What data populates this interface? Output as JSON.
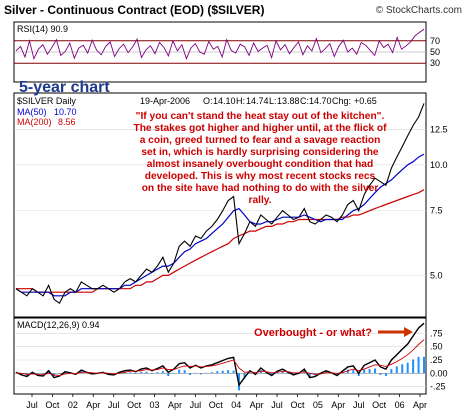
{
  "header": {
    "title": "Silver - Continuous Contract (EOD) ($SILVER)",
    "watermark": "© StockCharts.com"
  },
  "chart_data": [
    {
      "type": "line",
      "panel": "rsi",
      "indicator_label": "RSI(14) 90.9",
      "overlay_text": "5-year chart",
      "ylim": [
        0,
        100
      ],
      "reference_lines": [
        30,
        50,
        70
      ],
      "y_ticks": [
        "30",
        "50",
        "70"
      ],
      "grid": true,
      "series": [
        {
          "name": "RSI(14)",
          "color": "#800080",
          "values": [
            52,
            60,
            41,
            70,
            38,
            55,
            63,
            46,
            58,
            72,
            44,
            51,
            66,
            39,
            57,
            62,
            48,
            71,
            53,
            45,
            60,
            68,
            42,
            56,
            64,
            49,
            59,
            73,
            40,
            54,
            61,
            47,
            67,
            58,
            43,
            70,
            52,
            63,
            38,
            57,
            65,
            50,
            46,
            69,
            55,
            60,
            41,
            72,
            53,
            48,
            64,
            59,
            44,
            66,
            51,
            57,
            62,
            40,
            70,
            54,
            63,
            47,
            58,
            68,
            45,
            61,
            52,
            74,
            49,
            56,
            65,
            42,
            60,
            71,
            50,
            57,
            46,
            67,
            62,
            53,
            44,
            70,
            58,
            64,
            49,
            76,
            55,
            61,
            68,
            79,
            85,
            90.9
          ]
        }
      ]
    },
    {
      "type": "line",
      "panel": "price",
      "indicator_label": "$SILVER Daily",
      "date_stamp": "19-Apr-2006",
      "ohlc": {
        "O": "14.10",
        "H": "14.74",
        "L": "13.88",
        "C": "14.70",
        "Chg": "+0.65"
      },
      "ma_labels": [
        {
          "name": "MA(50)",
          "value": "10.70",
          "color": "#0000cc"
        },
        {
          "name": "MA(200)",
          "value": "8.56",
          "color": "#cc0000"
        }
      ],
      "annotation": "\"If you can't stand the heat stay out of the kitchen\". The stakes got higher and higher until, at the flick of a coin, greed turned to fear and a savage reaction set in, which is hardly surprising considering the almost insanely overbought condition that had developed. This is why most recent stocks recs on the site have had nothing to do with the silver rally.",
      "annotation_lines": [
        "\"If you can't stand the heat stay out of the kitchen\".",
        "The stakes got higher and higher until, at the flick of",
        "a coin, greed turned to fear and a savage reaction",
        "set in, which is hardly surprising considering the",
        "almost insanely overbought condition that had",
        "developed. This is why most recent stocks recs",
        "on the site have had nothing to do with the silver",
        "rally."
      ],
      "y_scale": "log",
      "ylim": [
        3.9,
        15.5
      ],
      "y_ticks": [
        "5.0",
        "7.5",
        "10.0",
        "12.5"
      ],
      "y_tick_values": [
        5.0,
        7.5,
        10.0,
        12.5
      ],
      "grid": true,
      "series": [
        {
          "name": "$SILVER Daily",
          "color": "#000000",
          "values": [
            4.6,
            4.5,
            4.4,
            4.6,
            4.5,
            4.4,
            4.7,
            4.3,
            4.2,
            4.5,
            4.6,
            4.5,
            4.8,
            4.7,
            4.6,
            4.6,
            4.7,
            4.6,
            4.5,
            4.6,
            4.8,
            4.9,
            4.8,
            5.0,
            5.2,
            5.1,
            5.3,
            5.6,
            5.1,
            5.4,
            6.0,
            6.2,
            6.0,
            6.4,
            6.3,
            6.6,
            6.8,
            7.1,
            7.5,
            8.0,
            8.2,
            6.1,
            6.5,
            7.0,
            6.8,
            7.3,
            7.1,
            6.9,
            7.2,
            7.5,
            7.3,
            7.1,
            7.2,
            7.6,
            7.0,
            6.9,
            7.1,
            7.3,
            7.2,
            7.0,
            7.3,
            7.8,
            8.0,
            7.5,
            8.3,
            8.8,
            9.2,
            9.0,
            8.8,
            9.8,
            10.5,
            11.2,
            12.0,
            12.8,
            13.5,
            14.7
          ]
        },
        {
          "name": "MA(50)",
          "color": "#0000cc",
          "values": [
            4.6,
            4.5,
            4.5,
            4.5,
            4.5,
            4.5,
            4.5,
            4.4,
            4.4,
            4.4,
            4.5,
            4.5,
            4.6,
            4.6,
            4.6,
            4.6,
            4.6,
            4.6,
            4.6,
            4.6,
            4.7,
            4.7,
            4.8,
            4.9,
            5.0,
            5.1,
            5.2,
            5.3,
            5.3,
            5.4,
            5.6,
            5.8,
            5.9,
            6.1,
            6.2,
            6.3,
            6.5,
            6.7,
            6.9,
            7.2,
            7.5,
            7.6,
            7.3,
            7.0,
            6.9,
            6.9,
            7.0,
            7.0,
            7.1,
            7.2,
            7.2,
            7.2,
            7.2,
            7.3,
            7.2,
            7.1,
            7.0,
            7.1,
            7.1,
            7.1,
            7.1,
            7.3,
            7.5,
            7.6,
            7.8,
            8.1,
            8.4,
            8.7,
            8.9,
            9.1,
            9.4,
            9.7,
            10.0,
            10.2,
            10.5,
            10.7
          ]
        },
        {
          "name": "MA(200)",
          "color": "#cc0000",
          "values": [
            4.6,
            4.6,
            4.6,
            4.6,
            4.5,
            4.5,
            4.5,
            4.5,
            4.5,
            4.5,
            4.5,
            4.5,
            4.5,
            4.5,
            4.5,
            4.6,
            4.6,
            4.6,
            4.6,
            4.6,
            4.6,
            4.6,
            4.7,
            4.7,
            4.8,
            4.8,
            4.9,
            5.0,
            5.0,
            5.1,
            5.2,
            5.3,
            5.4,
            5.5,
            5.6,
            5.7,
            5.8,
            5.9,
            6.0,
            6.1,
            6.3,
            6.4,
            6.5,
            6.6,
            6.6,
            6.7,
            6.8,
            6.8,
            6.9,
            6.9,
            7.0,
            7.0,
            7.1,
            7.1,
            7.1,
            7.1,
            7.1,
            7.1,
            7.1,
            7.1,
            7.2,
            7.2,
            7.3,
            7.3,
            7.4,
            7.5,
            7.6,
            7.7,
            7.8,
            7.9,
            8.0,
            8.1,
            8.2,
            8.3,
            8.4,
            8.56
          ]
        }
      ]
    },
    {
      "type": "line",
      "panel": "macd",
      "indicator_label": "MACD(12,26,9) 0.94",
      "annotation": "Overbought - or what?",
      "ylim": [
        -0.35,
        1.0
      ],
      "y_ticks": [
        "-.25",
        "0.00",
        ".25",
        ".50",
        ".75"
      ],
      "y_tick_values": [
        -0.25,
        0.0,
        0.25,
        0.5,
        0.75
      ],
      "grid": true,
      "series": [
        {
          "name": "MACD",
          "color": "#000000",
          "values": [
            0.02,
            -0.03,
            -0.06,
            0.02,
            -0.04,
            -0.05,
            0.05,
            -0.08,
            -0.05,
            0.03,
            0.01,
            -0.02,
            0.06,
            0.02,
            -0.01,
            0.0,
            0.02,
            -0.02,
            -0.03,
            0.02,
            0.05,
            0.06,
            0.03,
            0.08,
            0.1,
            0.05,
            0.09,
            0.14,
            0.02,
            0.08,
            0.18,
            0.2,
            0.1,
            0.15,
            0.1,
            0.14,
            0.16,
            0.2,
            0.24,
            0.28,
            0.3,
            -0.22,
            -0.08,
            0.05,
            -0.02,
            0.1,
            0.02,
            -0.04,
            0.04,
            0.08,
            0.02,
            -0.03,
            0.0,
            0.08,
            -0.08,
            -0.06,
            0.0,
            0.05,
            0.01,
            -0.04,
            0.04,
            0.12,
            0.14,
            0.0,
            0.15,
            0.2,
            0.25,
            0.12,
            0.08,
            0.25,
            0.35,
            0.45,
            0.55,
            0.7,
            0.85,
            0.94
          ]
        },
        {
          "name": "Signal",
          "color": "#cc0000",
          "values": [
            0.01,
            0.0,
            -0.02,
            -0.01,
            -0.02,
            -0.03,
            0.0,
            -0.03,
            -0.04,
            -0.01,
            0.0,
            -0.01,
            0.02,
            0.02,
            0.01,
            0.0,
            0.01,
            0.0,
            -0.01,
            0.0,
            0.02,
            0.04,
            0.04,
            0.05,
            0.07,
            0.06,
            0.07,
            0.1,
            0.07,
            0.07,
            0.11,
            0.14,
            0.13,
            0.14,
            0.12,
            0.13,
            0.14,
            0.16,
            0.19,
            0.22,
            0.25,
            0.1,
            0.02,
            0.03,
            0.01,
            0.04,
            0.03,
            0.01,
            0.02,
            0.04,
            0.03,
            0.01,
            0.01,
            0.03,
            0.0,
            -0.02,
            -0.01,
            0.01,
            0.01,
            0.0,
            0.01,
            0.05,
            0.08,
            0.05,
            0.08,
            0.12,
            0.16,
            0.15,
            0.13,
            0.17,
            0.22,
            0.28,
            0.35,
            0.44,
            0.54,
            0.63
          ]
        }
      ]
    }
  ],
  "x_axis": {
    "labels": [
      "Jul",
      "Oct",
      "02",
      "Apr",
      "Jul",
      "Oct",
      "03",
      "Apr",
      "Jul",
      "Oct",
      "04",
      "Apr",
      "Jul",
      "Oct",
      "05",
      "Apr",
      "Jul",
      "Oct",
      "06",
      "Apr"
    ]
  }
}
